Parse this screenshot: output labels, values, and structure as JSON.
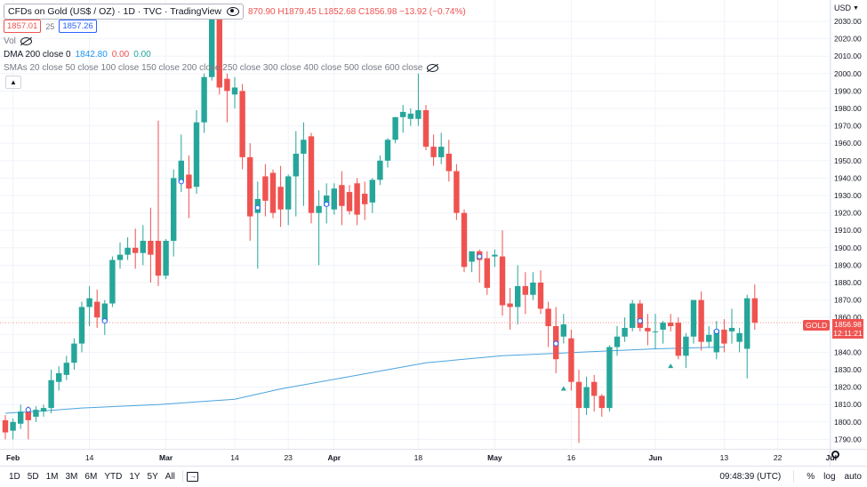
{
  "header": {
    "symbol_title": "CFDs on Gold (US$ / OZ) · 1D · TVC · TradingView",
    "ohlc_text": "870.90  H1879.45  L1852.68  C1856.98  −13.92 (−0.74%)",
    "bid": "1857.01",
    "spread": "25",
    "ask": "1857.26"
  },
  "indicators": {
    "vol_label": "Vol",
    "dma_label": "DMA 200 close 0",
    "dma_v1": "1842.80",
    "dma_v2": "0.00",
    "dma_v3": "0.00",
    "smas_label": "SMAs 20 close 50 close 100 close 150 close 200 close 250 close 300 close 400 close 500 close 600 close"
  },
  "price_scale": {
    "currency": "USD"
  },
  "last_price": {
    "symbol": "GOLD",
    "price": "1856.98",
    "countdown": "12:11:21"
  },
  "bottom_bar": {
    "timeframes": [
      "1D",
      "5D",
      "1M",
      "3M",
      "6M",
      "YTD",
      "1Y",
      "5Y",
      "All"
    ],
    "time": "09:48:39 (UTC)",
    "percent": "%",
    "log": "log",
    "auto": "auto"
  },
  "colors": {
    "up": "#26a69a",
    "down": "#ef5350",
    "ma": "#4aa3df",
    "grid": "#f0f3fa"
  },
  "chart_data": {
    "type": "candlestick",
    "y_range": [
      1785,
      2040
    ],
    "y_ticks": [
      1790,
      1800,
      1810,
      1820,
      1830,
      1840,
      1850,
      1860,
      1870,
      1880,
      1890,
      1900,
      1910,
      1920,
      1930,
      1940,
      1950,
      1960,
      1970,
      1980,
      1990,
      2000,
      2010,
      2020,
      2030
    ],
    "x_ticks": [
      {
        "label": "Feb",
        "bar": 1,
        "bold": true
      },
      {
        "label": "14",
        "bar": 11
      },
      {
        "label": "Mar",
        "bar": 21,
        "bold": true
      },
      {
        "label": "14",
        "bar": 30
      },
      {
        "label": "23",
        "bar": 37
      },
      {
        "label": "Apr",
        "bar": 43,
        "bold": true
      },
      {
        "label": "18",
        "bar": 54
      },
      {
        "label": "May",
        "bar": 64,
        "bold": true
      },
      {
        "label": "16",
        "bar": 74
      },
      {
        "label": "Jun",
        "bar": 85,
        "bold": true
      },
      {
        "label": "13",
        "bar": 94
      },
      {
        "label": "22",
        "bar": 101
      },
      {
        "label": "Jul",
        "bar": 108,
        "bold": true
      }
    ],
    "candles": [
      {
        "o": 1801,
        "h": 1804,
        "l": 1790,
        "c": 1794
      },
      {
        "o": 1795,
        "h": 1802,
        "l": 1790,
        "c": 1800
      },
      {
        "o": 1799,
        "h": 1810,
        "l": 1796,
        "c": 1806
      },
      {
        "o": 1806,
        "h": 1809,
        "l": 1790,
        "c": 1801
      },
      {
        "o": 1803,
        "h": 1809,
        "l": 1800,
        "c": 1807
      },
      {
        "o": 1806,
        "h": 1810,
        "l": 1803,
        "c": 1808
      },
      {
        "o": 1808,
        "h": 1830,
        "l": 1805,
        "c": 1824
      },
      {
        "o": 1823,
        "h": 1832,
        "l": 1818,
        "c": 1828
      },
      {
        "o": 1827,
        "h": 1838,
        "l": 1824,
        "c": 1834
      },
      {
        "o": 1834,
        "h": 1848,
        "l": 1830,
        "c": 1845
      },
      {
        "o": 1845,
        "h": 1869,
        "l": 1840,
        "c": 1866
      },
      {
        "o": 1866,
        "h": 1878,
        "l": 1855,
        "c": 1871
      },
      {
        "o": 1869,
        "h": 1876,
        "l": 1854,
        "c": 1860
      },
      {
        "o": 1858,
        "h": 1870,
        "l": 1850,
        "c": 1868
      },
      {
        "o": 1868,
        "h": 1895,
        "l": 1866,
        "c": 1893
      },
      {
        "o": 1893,
        "h": 1903,
        "l": 1888,
        "c": 1896
      },
      {
        "o": 1896,
        "h": 1906,
        "l": 1893,
        "c": 1900
      },
      {
        "o": 1900,
        "h": 1911,
        "l": 1888,
        "c": 1897
      },
      {
        "o": 1897,
        "h": 1913,
        "l": 1890,
        "c": 1904
      },
      {
        "o": 1904,
        "h": 1923,
        "l": 1880,
        "c": 1896
      },
      {
        "o": 1904,
        "h": 1973,
        "l": 1878,
        "c": 1884
      },
      {
        "o": 1884,
        "h": 1905,
        "l": 1882,
        "c": 1904
      },
      {
        "o": 1904,
        "h": 1945,
        "l": 1895,
        "c": 1940
      },
      {
        "o": 1938,
        "h": 1965,
        "l": 1932,
        "c": 1950
      },
      {
        "o": 1942,
        "h": 1953,
        "l": 1917,
        "c": 1934
      },
      {
        "o": 1935,
        "h": 1979,
        "l": 1931,
        "c": 1972
      },
      {
        "o": 1972,
        "h": 2000,
        "l": 1966,
        "c": 1998
      },
      {
        "o": 1998,
        "h": 2040,
        "l": 1996,
        "c": 2040
      },
      {
        "o": 2040,
        "h": 2040,
        "l": 1988,
        "c": 1992
      },
      {
        "o": 1997,
        "h": 2000,
        "l": 1972,
        "c": 1990
      },
      {
        "o": 1988,
        "h": 1998,
        "l": 1980,
        "c": 1992
      },
      {
        "o": 1990,
        "h": 1994,
        "l": 1945,
        "c": 1952
      },
      {
        "o": 1952,
        "h": 1960,
        "l": 1904,
        "c": 1918
      },
      {
        "o": 1920,
        "h": 1938,
        "l": 1888,
        "c": 1928
      },
      {
        "o": 1941,
        "h": 1948,
        "l": 1918,
        "c": 1927
      },
      {
        "o": 1943,
        "h": 1945,
        "l": 1917,
        "c": 1920
      },
      {
        "o": 1935,
        "h": 1947,
        "l": 1912,
        "c": 1922
      },
      {
        "o": 1922,
        "h": 1942,
        "l": 1913,
        "c": 1941
      },
      {
        "o": 1941,
        "h": 1967,
        "l": 1918,
        "c": 1954
      },
      {
        "o": 1954,
        "h": 1972,
        "l": 1924,
        "c": 1962
      },
      {
        "o": 1964,
        "h": 1966,
        "l": 1914,
        "c": 1920
      },
      {
        "o": 1920,
        "h": 1933,
        "l": 1890,
        "c": 1924
      },
      {
        "o": 1924,
        "h": 1937,
        "l": 1914,
        "c": 1930
      },
      {
        "o": 1922,
        "h": 1937,
        "l": 1919,
        "c": 1934
      },
      {
        "o": 1936,
        "h": 1944,
        "l": 1913,
        "c": 1924
      },
      {
        "o": 1932,
        "h": 1936,
        "l": 1919,
        "c": 1921
      },
      {
        "o": 1937,
        "h": 1940,
        "l": 1913,
        "c": 1919
      },
      {
        "o": 1931,
        "h": 1938,
        "l": 1916,
        "c": 1925
      },
      {
        "o": 1926,
        "h": 1940,
        "l": 1920,
        "c": 1939
      },
      {
        "o": 1939,
        "h": 1953,
        "l": 1936,
        "c": 1950
      },
      {
        "o": 1950,
        "h": 1963,
        "l": 1946,
        "c": 1962
      },
      {
        "o": 1962,
        "h": 1975,
        "l": 1960,
        "c": 1975
      },
      {
        "o": 1975,
        "h": 1982,
        "l": 1966,
        "c": 1978
      },
      {
        "o": 1974,
        "h": 1980,
        "l": 1970,
        "c": 1977
      },
      {
        "o": 1974,
        "h": 2000,
        "l": 1970,
        "c": 1979
      },
      {
        "o": 1979,
        "h": 1982,
        "l": 1956,
        "c": 1958
      },
      {
        "o": 1958,
        "h": 1965,
        "l": 1947,
        "c": 1952
      },
      {
        "o": 1952,
        "h": 1966,
        "l": 1948,
        "c": 1958
      },
      {
        "o": 1954,
        "h": 1962,
        "l": 1938,
        "c": 1944
      },
      {
        "o": 1944,
        "h": 1948,
        "l": 1916,
        "c": 1920
      },
      {
        "o": 1920,
        "h": 1922,
        "l": 1886,
        "c": 1889
      },
      {
        "o": 1892,
        "h": 1897,
        "l": 1886,
        "c": 1898
      },
      {
        "o": 1898,
        "h": 1899,
        "l": 1880,
        "c": 1893
      },
      {
        "o": 1894,
        "h": 1898,
        "l": 1873,
        "c": 1877
      },
      {
        "o": 1895,
        "h": 1899,
        "l": 1889,
        "c": 1896
      },
      {
        "o": 1895,
        "h": 1910,
        "l": 1861,
        "c": 1867
      },
      {
        "o": 1868,
        "h": 1877,
        "l": 1853,
        "c": 1866
      },
      {
        "o": 1866,
        "h": 1890,
        "l": 1856,
        "c": 1878
      },
      {
        "o": 1878,
        "h": 1886,
        "l": 1862,
        "c": 1873
      },
      {
        "o": 1873,
        "h": 1886,
        "l": 1870,
        "c": 1880
      },
      {
        "o": 1880,
        "h": 1887,
        "l": 1862,
        "c": 1865
      },
      {
        "o": 1865,
        "h": 1869,
        "l": 1843,
        "c": 1855
      },
      {
        "o": 1855,
        "h": 1866,
        "l": 1828,
        "c": 1836
      },
      {
        "o": 1849,
        "h": 1862,
        "l": 1845,
        "c": 1856
      },
      {
        "o": 1848,
        "h": 1853,
        "l": 1818,
        "c": 1823
      },
      {
        "o": 1823,
        "h": 1830,
        "l": 1788,
        "c": 1808
      },
      {
        "o": 1808,
        "h": 1826,
        "l": 1804,
        "c": 1820
      },
      {
        "o": 1823,
        "h": 1827,
        "l": 1806,
        "c": 1815
      },
      {
        "o": 1815,
        "h": 1816,
        "l": 1803,
        "c": 1808
      },
      {
        "o": 1808,
        "h": 1844,
        "l": 1806,
        "c": 1843
      },
      {
        "o": 1843,
        "h": 1855,
        "l": 1838,
        "c": 1849
      },
      {
        "o": 1849,
        "h": 1860,
        "l": 1846,
        "c": 1854
      },
      {
        "o": 1854,
        "h": 1870,
        "l": 1852,
        "c": 1868
      },
      {
        "o": 1868,
        "h": 1870,
        "l": 1852,
        "c": 1854
      },
      {
        "o": 1854,
        "h": 1862,
        "l": 1844,
        "c": 1852
      },
      {
        "o": 1852,
        "h": 1862,
        "l": 1842,
        "c": 1852
      },
      {
        "o": 1853,
        "h": 1858,
        "l": 1845,
        "c": 1857
      },
      {
        "o": 1857,
        "h": 1862,
        "l": 1852,
        "c": 1855
      },
      {
        "o": 1857,
        "h": 1860,
        "l": 1836,
        "c": 1838
      },
      {
        "o": 1838,
        "h": 1851,
        "l": 1831,
        "c": 1849
      },
      {
        "o": 1849,
        "h": 1870,
        "l": 1845,
        "c": 1870
      },
      {
        "o": 1870,
        "h": 1875,
        "l": 1841,
        "c": 1846
      },
      {
        "o": 1846,
        "h": 1855,
        "l": 1843,
        "c": 1850
      },
      {
        "o": 1840,
        "h": 1858,
        "l": 1836,
        "c": 1853
      },
      {
        "o": 1853,
        "h": 1859,
        "l": 1840,
        "c": 1845
      },
      {
        "o": 1852,
        "h": 1865,
        "l": 1845,
        "c": 1854
      },
      {
        "o": 1846,
        "h": 1854,
        "l": 1840,
        "c": 1851
      },
      {
        "o": 1842,
        "h": 1873,
        "l": 1825,
        "c": 1871
      },
      {
        "o": 1871,
        "h": 1879,
        "l": 1853,
        "c": 1857
      }
    ],
    "dma_200": [
      {
        "bar": 0,
        "v": 1805
      },
      {
        "bar": 4,
        "v": 1806
      },
      {
        "bar": 10,
        "v": 1808
      },
      {
        "bar": 20,
        "v": 1810
      },
      {
        "bar": 30,
        "v": 1813
      },
      {
        "bar": 36,
        "v": 1819
      },
      {
        "bar": 45,
        "v": 1826
      },
      {
        "bar": 55,
        "v": 1834
      },
      {
        "bar": 65,
        "v": 1838
      },
      {
        "bar": 75,
        "v": 1840
      },
      {
        "bar": 85,
        "v": 1842
      },
      {
        "bar": 94,
        "v": 1843
      }
    ],
    "markers": [
      {
        "bar": 3,
        "type": "circle",
        "price": 1807
      },
      {
        "bar": 13,
        "type": "circle",
        "price": 1858
      },
      {
        "bar": 23,
        "type": "circle",
        "price": 1938
      },
      {
        "bar": 33,
        "type": "circle",
        "price": 1923
      },
      {
        "bar": 42,
        "type": "circle",
        "price": 1925
      },
      {
        "bar": 62,
        "type": "circle",
        "price": 1895
      },
      {
        "bar": 72,
        "type": "circle",
        "price": 1845
      },
      {
        "bar": 73,
        "type": "triangle",
        "price": 1819
      },
      {
        "bar": 83,
        "type": "circle",
        "price": 1858
      },
      {
        "bar": 87,
        "type": "triangle",
        "price": 1832
      },
      {
        "bar": 93,
        "type": "circle",
        "price": 1852
      }
    ]
  }
}
